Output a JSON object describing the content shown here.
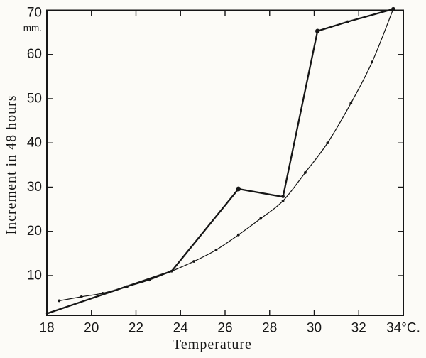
{
  "colors": {
    "ink": "#161616",
    "paper": "#fcfbf7"
  },
  "chart_data": {
    "type": "line",
    "title": "",
    "xlabel": "Temperature",
    "ylabel": "Increment in 48 hours",
    "unit_label": "mm.",
    "xlim": [
      18,
      34
    ],
    "ylim": [
      1,
      70
    ],
    "x_tick_values": [
      18,
      20,
      22,
      24,
      26,
      28,
      30,
      32,
      34
    ],
    "x_tick_labels": [
      "18",
      "20",
      "22",
      "24",
      "26",
      "28",
      "30",
      "32",
      "34°C."
    ],
    "x_ticks_marked": [
      20,
      22,
      24,
      26,
      28,
      30,
      32
    ],
    "y_tick_values": [
      10,
      20,
      30,
      40,
      50,
      60,
      70
    ],
    "y_tick_labels": [
      "10",
      "20",
      "30",
      "40",
      "50",
      "60",
      "70"
    ],
    "y_ticks_marked": [
      10,
      20,
      30,
      40,
      50,
      60
    ],
    "grid": false,
    "legend": "none",
    "frame": "box",
    "series": [
      {
        "name": "observed-growth",
        "style": "thick-solid",
        "smooth": false,
        "points": [
          [
            18.0,
            1.4
          ],
          [
            23.6,
            11.0
          ],
          [
            26.6,
            29.6
          ],
          [
            28.6,
            27.8
          ],
          [
            30.15,
            65.3
          ],
          [
            31.5,
            67.4
          ],
          [
            33.55,
            70.3
          ]
        ],
        "marker_points": [
          [
            26.6,
            29.6,
            3.4
          ],
          [
            28.6,
            27.9,
            2.4
          ],
          [
            30.15,
            65.3,
            3.2
          ],
          [
            31.5,
            67.4,
            2.0
          ],
          [
            33.55,
            70.3,
            2.8
          ]
        ]
      },
      {
        "name": "fitted-exponential-curve",
        "style": "thin-solid",
        "smooth": true,
        "marker_radius": 1.9,
        "points": [
          [
            18.55,
            4.3
          ],
          [
            19.55,
            5.2
          ],
          [
            20.5,
            6.0
          ],
          [
            21.6,
            7.5
          ],
          [
            22.6,
            9.0
          ],
          [
            23.6,
            11.0
          ],
          [
            24.6,
            13.2
          ],
          [
            25.6,
            15.8
          ],
          [
            26.6,
            19.2
          ],
          [
            27.6,
            22.9
          ],
          [
            28.6,
            26.9
          ],
          [
            29.6,
            33.3
          ],
          [
            30.6,
            40.0
          ],
          [
            31.65,
            49.0
          ],
          [
            32.6,
            58.3
          ],
          [
            33.55,
            70.3
          ]
        ]
      }
    ]
  }
}
